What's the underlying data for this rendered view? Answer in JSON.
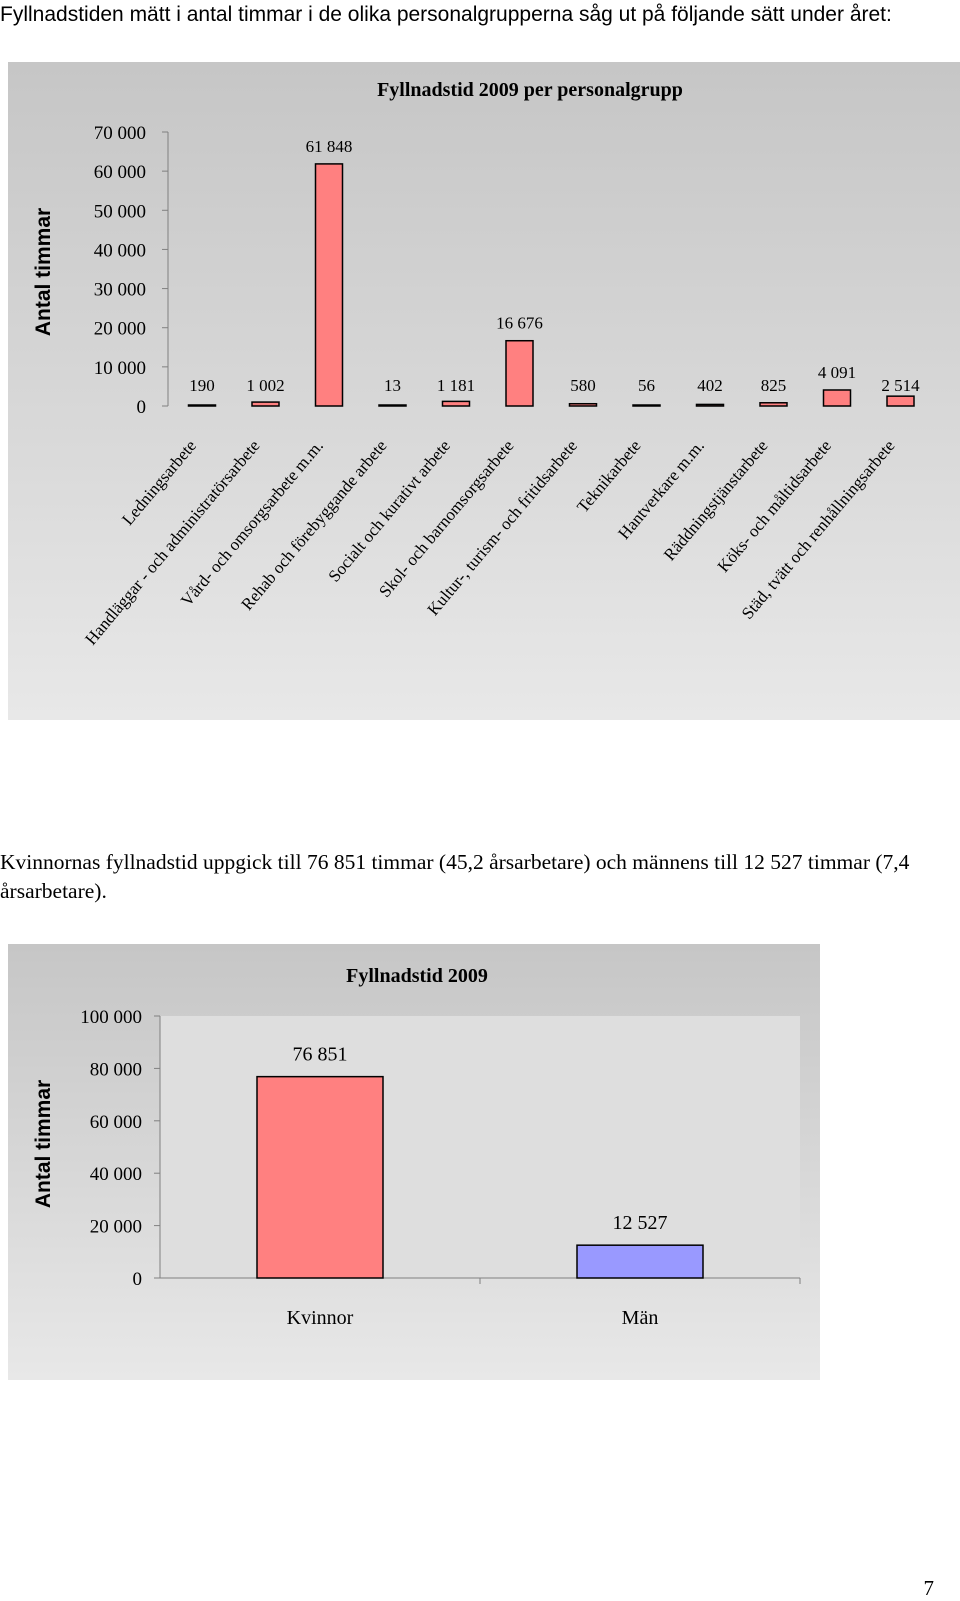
{
  "intro_text": "Fyllnadstiden mätt i antal timmar i de olika personalgrupperna såg ut på följande sätt under året:",
  "paragraph": "Kvinnornas fyllnadstid uppgick till 76 851 timmar (45,2 årsarbetare) och männens till 12 527 timmar (7,4 årsarbetare).",
  "page_number": "7",
  "colors": {
    "bar_pink": "#ff8080",
    "bar_blue": "#9999ff",
    "panel_bg": "#d3d3d3"
  },
  "chart_data": [
    {
      "type": "bar",
      "title": "Fyllnadstid 2009 per personalgrupp",
      "xlabel": "",
      "ylabel": "Antal timmar",
      "ylim": [
        0,
        70000
      ],
      "yticks": [
        0,
        10000,
        20000,
        30000,
        40000,
        50000,
        60000,
        70000
      ],
      "ytick_labels": [
        "0",
        "10 000",
        "20 000",
        "30 000",
        "40 000",
        "50 000",
        "60 000",
        "70 000"
      ],
      "grid": false,
      "categories": [
        "Ledningsarbete",
        "Handläggar - och administratörsarbete",
        "Vård- och omsorgsarbete m.m.",
        "Rehab och förebyggande arbete",
        "Socialt och kurativt arbete",
        "Skol- och barnomsorgsarbete",
        "Kultur-, turism- och fritidsarbete",
        "Teknikarbete",
        "Hantverkare m.m.",
        "Räddningstjänstarbete",
        "Köks- och måltidsarbete",
        "Städ, tvätt och renhållningsarbete"
      ],
      "values": [
        190,
        1002,
        61848,
        13,
        1181,
        16676,
        580,
        56,
        402,
        825,
        4091,
        2514
      ],
      "data_labels": [
        "190",
        "1 002",
        "61 848",
        "13",
        "1 181",
        "16 676",
        "580",
        "56",
        "402",
        "825",
        "4 091",
        "2 514"
      ],
      "bar_color": "#ff8080"
    },
    {
      "type": "bar",
      "title": "Fyllnadstid 2009",
      "xlabel": "",
      "ylabel": "Antal timmar",
      "ylim": [
        0,
        100000
      ],
      "yticks": [
        0,
        20000,
        40000,
        60000,
        80000,
        100000
      ],
      "ytick_labels": [
        "0",
        "20 000",
        "40 000",
        "60 000",
        "80 000",
        "100 000"
      ],
      "grid": false,
      "categories": [
        "Kvinnor",
        "Män"
      ],
      "values": [
        76851,
        12527
      ],
      "data_labels": [
        "76 851",
        "12 527"
      ],
      "bar_colors": [
        "#ff8080",
        "#9999ff"
      ]
    }
  ]
}
